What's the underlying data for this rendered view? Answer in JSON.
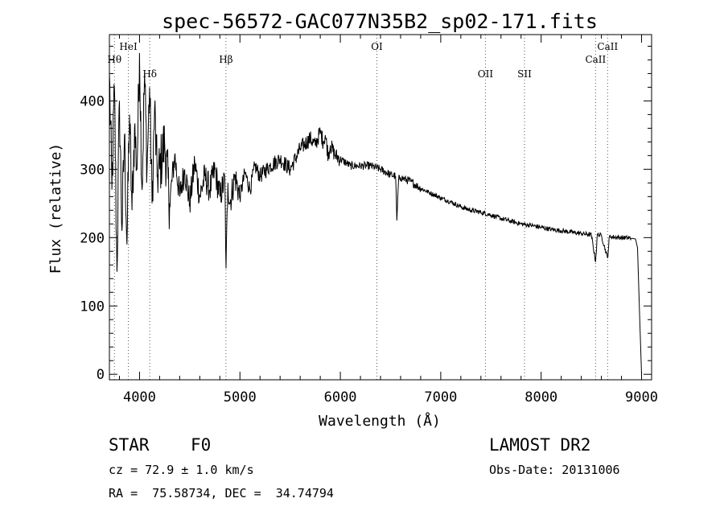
{
  "chart_data": {
    "type": "line",
    "title": "spec-56572-GAC077N35B2_sp02-171.fits",
    "xlabel": "Wavelength (Å)",
    "ylabel": "Flux (relative)",
    "xlim": [
      3700,
      9100
    ],
    "ylim": [
      -8,
      497
    ],
    "xticks": [
      4000,
      5000,
      6000,
      7000,
      8000,
      9000
    ],
    "xtick_labels": [
      "4000",
      "5000",
      "6000",
      "7000",
      "8000",
      "9000"
    ],
    "yticks": [
      0,
      100,
      200,
      300,
      400
    ],
    "ytick_labels": [
      "0",
      "100",
      "200",
      "300",
      "400"
    ],
    "grid": false,
    "series": [
      {
        "x": [
          3700,
          3725,
          3750,
          3775,
          3800,
          3825,
          3850,
          3875,
          3900,
          3925,
          3950,
          3975,
          4000,
          4025,
          4050,
          4075,
          4100,
          4125,
          4150,
          4175,
          4200,
          4250,
          4300,
          4350,
          4400,
          4450,
          4500,
          4550,
          4600,
          4650,
          4700,
          4750,
          4800,
          4850,
          4862,
          4880,
          4900,
          4950,
          5000,
          5050,
          5100,
          5150,
          5200,
          5300,
          5400,
          5500,
          5600,
          5700,
          5750,
          5800,
          5830,
          5850,
          5880,
          5900,
          5950,
          6000,
          6100,
          6200,
          6300,
          6400,
          6500,
          6550,
          6563,
          6580,
          6600,
          6700,
          6800,
          6900,
          7000,
          7100,
          7200,
          7300,
          7400,
          7500,
          7600,
          7700,
          7800,
          7900,
          8000,
          8100,
          8200,
          8300,
          8400,
          8500,
          8542,
          8560,
          8600,
          8662,
          8680,
          8700,
          8800,
          8900,
          8940,
          8960,
          8980,
          9000
        ],
        "y": [
          440,
          270,
          420,
          150,
          400,
          210,
          350,
          190,
          380,
          240,
          360,
          300,
          470,
          270,
          440,
          300,
          420,
          250,
          390,
          290,
          300,
          340,
          250,
          320,
          260,
          300,
          250,
          310,
          260,
          290,
          270,
          300,
          260,
          285,
          155,
          280,
          250,
          290,
          260,
          295,
          270,
          305,
          290,
          305,
          315,
          300,
          330,
          345,
          335,
          355,
          340,
          350,
          320,
          335,
          320,
          315,
          305,
          305,
          305,
          300,
          292,
          290,
          225,
          285,
          288,
          282,
          272,
          265,
          258,
          252,
          245,
          240,
          237,
          233,
          228,
          224,
          220,
          218,
          215,
          212,
          210,
          208,
          206,
          204,
          165,
          205,
          203,
          170,
          202,
          201,
          200,
          199,
          198,
          185,
          90,
          0
        ]
      }
    ],
    "line_markers": [
      {
        "label": "Hθ",
        "x": 3750
      },
      {
        "label": "HeI",
        "x": 3889
      },
      {
        "label": "Hδ",
        "x": 4102
      },
      {
        "label": "Hβ",
        "x": 4861
      },
      {
        "label": "OI",
        "x": 6364
      },
      {
        "label": "OII",
        "x": 7445
      },
      {
        "label": "SII",
        "x": 7834
      },
      {
        "label": "CaII",
        "x": 8542
      },
      {
        "label": "CaII",
        "x": 8662
      }
    ]
  },
  "info": {
    "class_label": "STAR",
    "subclass": "F0",
    "survey": "LAMOST DR2",
    "redshift": "cz = 72.9 ± 1.0 km/s",
    "obs_date": "Obs-Date: 20131006",
    "coords": "RA =  75.58734, DEC =  34.74794"
  }
}
